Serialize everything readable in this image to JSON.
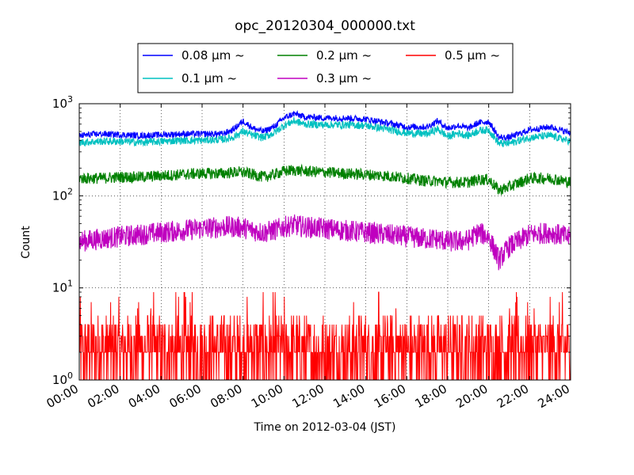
{
  "chart_data": {
    "type": "line",
    "title": "opc_20120304_000000.txt",
    "xlabel": "Time on 2012-03-04 (JST)",
    "ylabel": "Count",
    "y_scale": "log",
    "ylim": [
      1,
      1000
    ],
    "xlim": [
      "00:00",
      "24:00"
    ],
    "x_ticks": [
      "00:00",
      "02:00",
      "04:00",
      "06:00",
      "08:00",
      "10:00",
      "12:00",
      "14:00",
      "16:00",
      "18:00",
      "20:00",
      "22:00",
      "24:00"
    ],
    "y_ticks": [
      {
        "base": "10",
        "exp": "0"
      },
      {
        "base": "10",
        "exp": "1"
      },
      {
        "base": "10",
        "exp": "2"
      },
      {
        "base": "10",
        "exp": "3"
      }
    ],
    "grid": true,
    "legend_position": "top-center",
    "x_hours": [
      0,
      1,
      2,
      3,
      4,
      5,
      6,
      7,
      7.5,
      8,
      8.5,
      9,
      9.5,
      10,
      10.5,
      11,
      12,
      13,
      14,
      15,
      16,
      17,
      17.5,
      18,
      18.5,
      19,
      19.5,
      20,
      20.5,
      21,
      22,
      23,
      24
    ],
    "series": [
      {
        "name": "0.08 µm ~",
        "color": "#0000ff",
        "values": [
          450,
          470,
          460,
          450,
          460,
          470,
          470,
          470,
          520,
          650,
          540,
          500,
          560,
          700,
          780,
          720,
          700,
          700,
          680,
          620,
          560,
          560,
          650,
          540,
          580,
          540,
          620,
          640,
          430,
          430,
          520,
          560,
          480
        ]
      },
      {
        "name": "0.1 µm ~",
        "color": "#00c0c0",
        "values": [
          380,
          390,
          390,
          380,
          390,
          400,
          400,
          410,
          430,
          500,
          450,
          430,
          480,
          580,
          650,
          600,
          590,
          590,
          580,
          530,
          480,
          470,
          530,
          440,
          480,
          450,
          510,
          520,
          370,
          370,
          430,
          450,
          390
        ]
      },
      {
        "name": "0.2 µm ~",
        "color": "#008000",
        "values": [
          155,
          155,
          160,
          160,
          165,
          170,
          175,
          175,
          180,
          180,
          170,
          160,
          170,
          185,
          190,
          185,
          180,
          175,
          170,
          165,
          155,
          145,
          145,
          140,
          140,
          140,
          150,
          150,
          115,
          125,
          155,
          155,
          140
        ]
      },
      {
        "name": "0.3 µm ~",
        "color": "#bf00bf",
        "values": [
          32,
          34,
          36,
          38,
          40,
          42,
          44,
          46,
          46,
          45,
          42,
          40,
          42,
          46,
          48,
          46,
          44,
          42,
          40,
          38,
          36,
          34,
          34,
          32,
          32,
          33,
          40,
          36,
          20,
          28,
          38,
          40,
          35
        ]
      },
      {
        "name": "0.5 µm ~",
        "color": "#ff0000",
        "values": [
          2,
          2,
          2,
          2,
          2,
          2,
          2,
          2,
          2,
          2,
          2,
          2,
          2,
          2,
          2,
          2,
          2,
          2,
          2,
          2,
          2,
          2,
          2,
          2,
          2,
          2,
          2,
          2,
          2,
          2,
          2,
          2,
          2
        ]
      }
    ]
  }
}
